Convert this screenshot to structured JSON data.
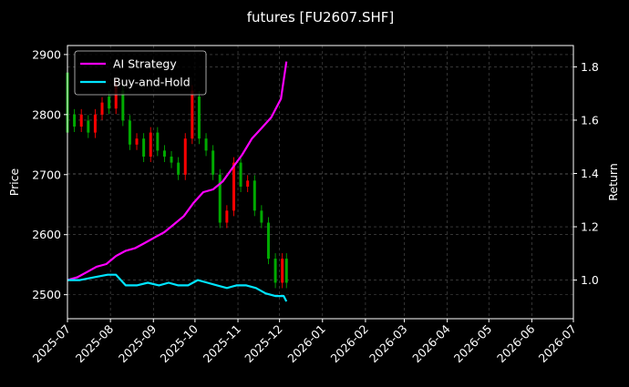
{
  "chart_data": {
    "type": "line",
    "title": "futures [FU2607.SHF]",
    "xlabel": "",
    "ylabel_left": "Price",
    "ylabel_right": "Return",
    "x_ticks": [
      "2025-07",
      "2025-08",
      "2025-09",
      "2025-10",
      "2025-11",
      "2025-12",
      "2026-01",
      "2026-02",
      "2026-03",
      "2026-04",
      "2026-05",
      "2026-06",
      "2026-07"
    ],
    "xlim": [
      "2025-07-01",
      "2026-07-01"
    ],
    "ylim_left": [
      2460,
      2915
    ],
    "yticks_left": [
      2500,
      2600,
      2700,
      2800,
      2900
    ],
    "ylim_right": [
      0.855,
      1.88
    ],
    "yticks_right": [
      1.0,
      1.2,
      1.4,
      1.6,
      1.8
    ],
    "grid": true,
    "legend_position": "top-left",
    "colors": {
      "up": "#ff0000",
      "down": "#00aa00",
      "ai": "#ff00ff",
      "bh": "#00e5ff",
      "grid": "#555555",
      "background": "#000000"
    },
    "series": [
      {
        "name": "AI Strategy",
        "axis": "right",
        "color": "#ff00ff",
        "points": [
          [
            "2025-07-01",
            1.0
          ],
          [
            "2025-07-08",
            1.01
          ],
          [
            "2025-07-15",
            1.03
          ],
          [
            "2025-07-22",
            1.05
          ],
          [
            "2025-07-29",
            1.06
          ],
          [
            "2025-08-05",
            1.09
          ],
          [
            "2025-08-12",
            1.11
          ],
          [
            "2025-08-19",
            1.12
          ],
          [
            "2025-08-26",
            1.14
          ],
          [
            "2025-09-02",
            1.16
          ],
          [
            "2025-09-09",
            1.18
          ],
          [
            "2025-09-16",
            1.21
          ],
          [
            "2025-09-23",
            1.24
          ],
          [
            "2025-09-30",
            1.29
          ],
          [
            "2025-10-07",
            1.33
          ],
          [
            "2025-10-14",
            1.34
          ],
          [
            "2025-10-21",
            1.37
          ],
          [
            "2025-10-28",
            1.42
          ],
          [
            "2025-11-04",
            1.47
          ],
          [
            "2025-11-11",
            1.53
          ],
          [
            "2025-11-18",
            1.57
          ],
          [
            "2025-11-25",
            1.61
          ],
          [
            "2025-12-02",
            1.68
          ],
          [
            "2025-12-04",
            1.75
          ],
          [
            "2025-12-06",
            1.82
          ]
        ]
      },
      {
        "name": "Buy-and-Hold",
        "axis": "right",
        "color": "#00e5ff",
        "points": [
          [
            "2025-07-01",
            1.0
          ],
          [
            "2025-07-10",
            1.0
          ],
          [
            "2025-07-20",
            1.01
          ],
          [
            "2025-07-30",
            1.02
          ],
          [
            "2025-08-05",
            1.02
          ],
          [
            "2025-08-12",
            0.98
          ],
          [
            "2025-08-20",
            0.98
          ],
          [
            "2025-08-28",
            0.99
          ],
          [
            "2025-09-05",
            0.98
          ],
          [
            "2025-09-12",
            0.99
          ],
          [
            "2025-09-19",
            0.98
          ],
          [
            "2025-09-26",
            0.98
          ],
          [
            "2025-10-03",
            1.0
          ],
          [
            "2025-10-10",
            0.99
          ],
          [
            "2025-10-17",
            0.98
          ],
          [
            "2025-10-24",
            0.97
          ],
          [
            "2025-10-31",
            0.98
          ],
          [
            "2025-11-07",
            0.98
          ],
          [
            "2025-11-14",
            0.97
          ],
          [
            "2025-11-21",
            0.95
          ],
          [
            "2025-11-28",
            0.94
          ],
          [
            "2025-12-04",
            0.94
          ],
          [
            "2025-12-06",
            0.92
          ]
        ]
      },
      {
        "name": "Price",
        "axis": "left",
        "type": "candlestick",
        "points": [
          [
            "2025-07-01",
            2870,
            2770
          ],
          [
            "2025-07-06",
            2800,
            2780
          ],
          [
            "2025-07-11",
            2780,
            2800
          ],
          [
            "2025-07-16",
            2790,
            2770
          ],
          [
            "2025-07-21",
            2770,
            2800
          ],
          [
            "2025-07-26",
            2800,
            2820
          ],
          [
            "2025-07-31",
            2830,
            2810
          ],
          [
            "2025-08-05",
            2810,
            2850
          ],
          [
            "2025-08-10",
            2840,
            2790
          ],
          [
            "2025-08-15",
            2790,
            2750
          ],
          [
            "2025-08-20",
            2750,
            2760
          ],
          [
            "2025-08-25",
            2760,
            2730
          ],
          [
            "2025-08-30",
            2730,
            2770
          ],
          [
            "2025-09-04",
            2770,
            2740
          ],
          [
            "2025-09-09",
            2740,
            2730
          ],
          [
            "2025-09-14",
            2730,
            2720
          ],
          [
            "2025-09-19",
            2720,
            2700
          ],
          [
            "2025-09-24",
            2700,
            2760
          ],
          [
            "2025-09-29",
            2760,
            2840
          ],
          [
            "2025-10-04",
            2830,
            2760
          ],
          [
            "2025-10-09",
            2760,
            2740
          ],
          [
            "2025-10-14",
            2740,
            2700
          ],
          [
            "2025-10-19",
            2700,
            2620
          ],
          [
            "2025-10-24",
            2620,
            2640
          ],
          [
            "2025-10-29",
            2640,
            2720
          ],
          [
            "2025-11-03",
            2720,
            2680
          ],
          [
            "2025-11-08",
            2680,
            2690
          ],
          [
            "2025-11-13",
            2690,
            2640
          ],
          [
            "2025-11-18",
            2640,
            2620
          ],
          [
            "2025-11-23",
            2620,
            2560
          ],
          [
            "2025-11-28",
            2560,
            2520
          ],
          [
            "2025-12-03",
            2520,
            2560
          ],
          [
            "2025-12-06",
            2560,
            2520
          ]
        ]
      }
    ]
  }
}
